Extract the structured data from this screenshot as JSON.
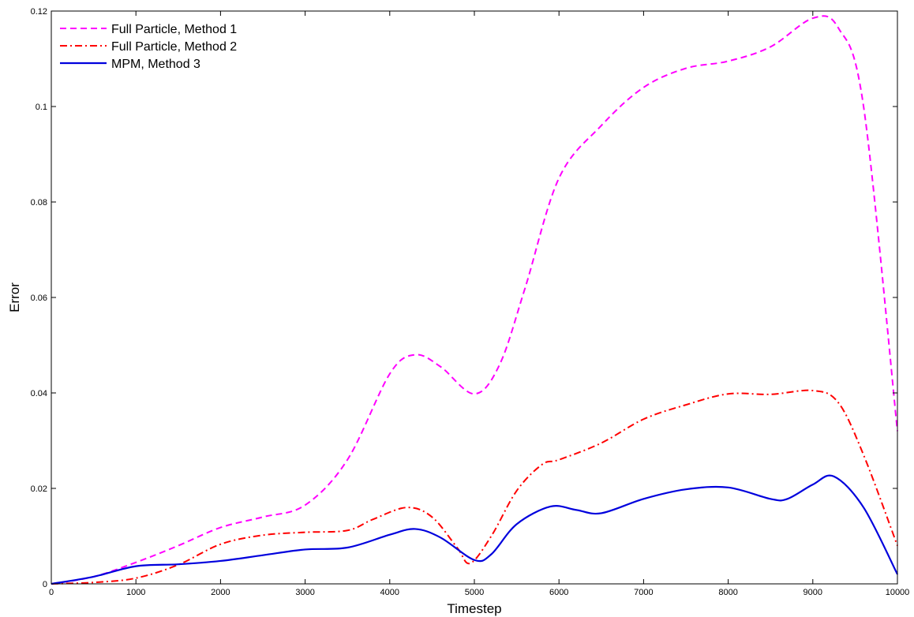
{
  "chart_data": {
    "type": "line",
    "title": "",
    "xlabel": "Timestep",
    "ylabel": "Error",
    "xlim": [
      0,
      10000
    ],
    "ylim": [
      0,
      0.12
    ],
    "x_ticks": [
      0,
      1000,
      2000,
      3000,
      4000,
      5000,
      6000,
      7000,
      8000,
      9000,
      10000
    ],
    "x_tick_labels": [
      "0",
      "1000",
      "2000",
      "3000",
      "4000",
      "5000",
      "6000",
      "7000",
      "8000",
      "9000",
      "10000"
    ],
    "y_ticks": [
      0,
      0.02,
      0.04,
      0.06,
      0.08,
      0.1,
      0.12
    ],
    "y_tick_labels": [
      "0",
      "0.02",
      "0.04",
      "0.06",
      "0.08",
      "0.1",
      "0.12"
    ],
    "grid": false,
    "legend_position": "top-left",
    "series": [
      {
        "name": "Full Particle, Method 1",
        "color": "#ff00ff",
        "dash": "dashed",
        "x": [
          0,
          500,
          1000,
          1500,
          2000,
          2500,
          3000,
          3500,
          4000,
          4300,
          4600,
          5000,
          5300,
          5600,
          6000,
          6500,
          7000,
          7500,
          8000,
          8500,
          9000,
          9300,
          9600,
          10000
        ],
        "y": [
          0,
          0.0015,
          0.0045,
          0.008,
          0.0118,
          0.014,
          0.0165,
          0.026,
          0.044,
          0.048,
          0.0455,
          0.0398,
          0.046,
          0.062,
          0.085,
          0.096,
          0.104,
          0.108,
          0.1095,
          0.1125,
          0.1185,
          0.1165,
          0.1,
          0.032
        ]
      },
      {
        "name": "Full Particle, Method 2",
        "color": "#ff0000",
        "dash": "dashdot",
        "x": [
          0,
          500,
          1000,
          1500,
          2000,
          2500,
          3000,
          3500,
          3800,
          4200,
          4500,
          4800,
          4950,
          5200,
          5500,
          5800,
          6000,
          6500,
          7000,
          7500,
          8000,
          8500,
          9000,
          9300,
          9600,
          10000
        ],
        "y": [
          0,
          0.0003,
          0.0012,
          0.004,
          0.0083,
          0.0102,
          0.0108,
          0.0112,
          0.0135,
          0.016,
          0.014,
          0.0075,
          0.0043,
          0.01,
          0.0195,
          0.025,
          0.026,
          0.0295,
          0.0345,
          0.0375,
          0.0398,
          0.0397,
          0.0405,
          0.038,
          0.027,
          0.008
        ]
      },
      {
        "name": "MPM, Method 3",
        "color": "#0000dd",
        "dash": "solid",
        "x": [
          0,
          500,
          1000,
          1500,
          2000,
          2500,
          3000,
          3500,
          4000,
          4300,
          4600,
          5000,
          5200,
          5500,
          5900,
          6200,
          6500,
          7000,
          7500,
          8000,
          8500,
          8700,
          9000,
          9250,
          9600,
          10000
        ],
        "y": [
          0,
          0.0015,
          0.0037,
          0.0041,
          0.0048,
          0.006,
          0.0072,
          0.0076,
          0.0103,
          0.0115,
          0.0097,
          0.005,
          0.0062,
          0.0125,
          0.0162,
          0.0155,
          0.0148,
          0.0178,
          0.0198,
          0.0202,
          0.0178,
          0.0178,
          0.0208,
          0.0225,
          0.016,
          0.002
        ]
      }
    ]
  }
}
